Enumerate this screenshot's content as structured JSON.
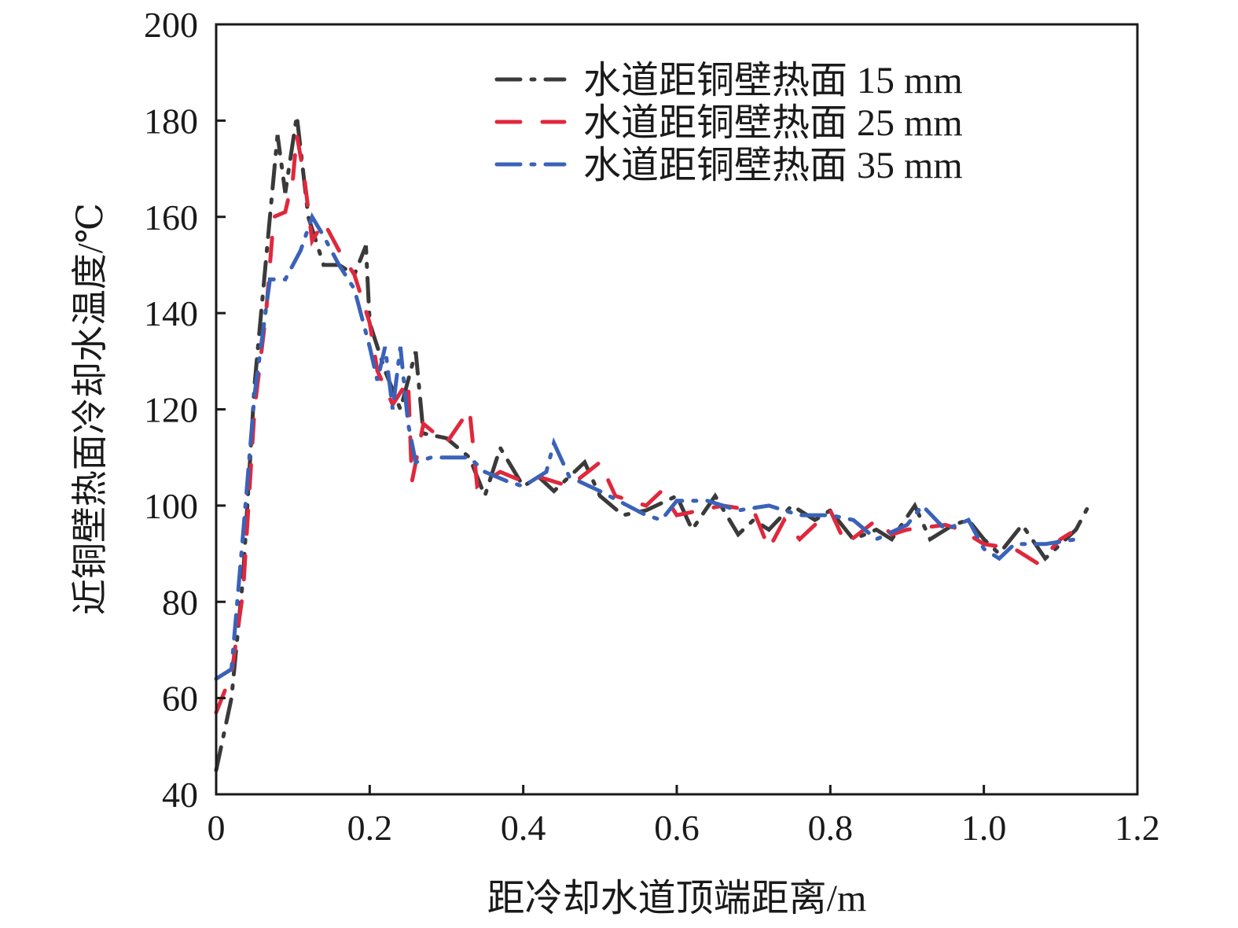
{
  "chart_data": {
    "type": "line",
    "xlabel": "距冷却水道顶端距离/m",
    "ylabel": "近铜壁热面冷却水温度/℃",
    "xlim": [
      0,
      1.2
    ],
    "ylim": [
      40,
      200
    ],
    "xticks": [
      "0",
      "0.2",
      "0.4",
      "0.6",
      "0.8",
      "1.0",
      "1.2"
    ],
    "xtick_values": [
      0,
      0.2,
      0.4,
      0.6,
      0.8,
      1.0,
      1.2
    ],
    "yticks": [
      "40",
      "60",
      "80",
      "100",
      "120",
      "140",
      "160",
      "180",
      "200"
    ],
    "ytick_values": [
      40,
      60,
      80,
      100,
      120,
      140,
      160,
      180,
      200
    ],
    "grid": false,
    "legend_position": "top-right",
    "series": [
      {
        "name": "水道距铜壁热面 15 mm",
        "color": "#3a3a3a",
        "style": "dash-dot",
        "x": [
          0,
          0.02,
          0.035,
          0.05,
          0.07,
          0.08,
          0.09,
          0.105,
          0.12,
          0.14,
          0.16,
          0.18,
          0.195,
          0.2,
          0.22,
          0.24,
          0.26,
          0.27,
          0.3,
          0.33,
          0.35,
          0.37,
          0.4,
          0.42,
          0.44,
          0.48,
          0.5,
          0.53,
          0.56,
          0.6,
          0.62,
          0.65,
          0.68,
          0.7,
          0.72,
          0.75,
          0.78,
          0.8,
          0.83,
          0.86,
          0.88,
          0.91,
          0.93,
          0.96,
          0.98,
          1.0,
          1.02,
          1.05,
          1.08,
          1.12,
          1.14
        ],
        "y": [
          45,
          60,
          85,
          125,
          160,
          177,
          165,
          181,
          160,
          150,
          150,
          148,
          154,
          138,
          128,
          120,
          132,
          115,
          114,
          110,
          102,
          112,
          104,
          106,
          103,
          109,
          102,
          98,
          99,
          102,
          95,
          102,
          94,
          97,
          95,
          100,
          97,
          99,
          93,
          95,
          93,
          100,
          93,
          96,
          97,
          93,
          90,
          96,
          89,
          95,
          101
        ]
      },
      {
        "name": "水道距铜壁热面 25 mm",
        "color": "#e0283c",
        "style": "dash",
        "x": [
          0,
          0.02,
          0.035,
          0.05,
          0.065,
          0.075,
          0.09,
          0.1,
          0.105,
          0.115,
          0.125,
          0.14,
          0.16,
          0.18,
          0.2,
          0.21,
          0.23,
          0.25,
          0.255,
          0.27,
          0.3,
          0.33,
          0.34,
          0.37,
          0.4,
          0.42,
          0.46,
          0.5,
          0.52,
          0.56,
          0.58,
          0.6,
          0.66,
          0.7,
          0.72,
          0.74,
          0.76,
          0.8,
          0.82,
          0.86,
          0.88,
          0.9,
          0.95,
          0.97,
          1.0,
          1.04,
          1.07,
          1.1,
          1.12
        ],
        "y": [
          57,
          65,
          82,
          120,
          140,
          160,
          161,
          168,
          177,
          168,
          155,
          159,
          153,
          148,
          138,
          128,
          121,
          126,
          105,
          117,
          113,
          120,
          104,
          107,
          105,
          106,
          104,
          109,
          102,
          100,
          103,
          98,
          100,
          99,
          91,
          97,
          93,
          99,
          92,
          97,
          94,
          95,
          96,
          95,
          92,
          91,
          88,
          93,
          95
        ]
      },
      {
        "name": "水道距铜壁热面 35 mm",
        "color": "#3a62b8",
        "style": "dash-dot",
        "x": [
          0,
          0.02,
          0.035,
          0.05,
          0.07,
          0.09,
          0.11,
          0.125,
          0.14,
          0.16,
          0.18,
          0.2,
          0.21,
          0.22,
          0.23,
          0.24,
          0.25,
          0.26,
          0.28,
          0.3,
          0.33,
          0.35,
          0.38,
          0.4,
          0.43,
          0.44,
          0.46,
          0.5,
          0.56,
          0.58,
          0.6,
          0.64,
          0.68,
          0.72,
          0.76,
          0.8,
          0.83,
          0.86,
          0.9,
          0.92,
          0.95,
          0.98,
          1.0,
          1.02,
          1.04,
          1.08,
          1.12
        ],
        "y": [
          64,
          66,
          94,
          123,
          147,
          147,
          153,
          160,
          156,
          150,
          145,
          133,
          126,
          133,
          120,
          133,
          117,
          109,
          110,
          110,
          110,
          107,
          105,
          104,
          107,
          113,
          106,
          103,
          98,
          97,
          101,
          101,
          99,
          100,
          98,
          98,
          97,
          93,
          96,
          100,
          95,
          97,
          91,
          89,
          92,
          92,
          93
        ]
      }
    ]
  }
}
